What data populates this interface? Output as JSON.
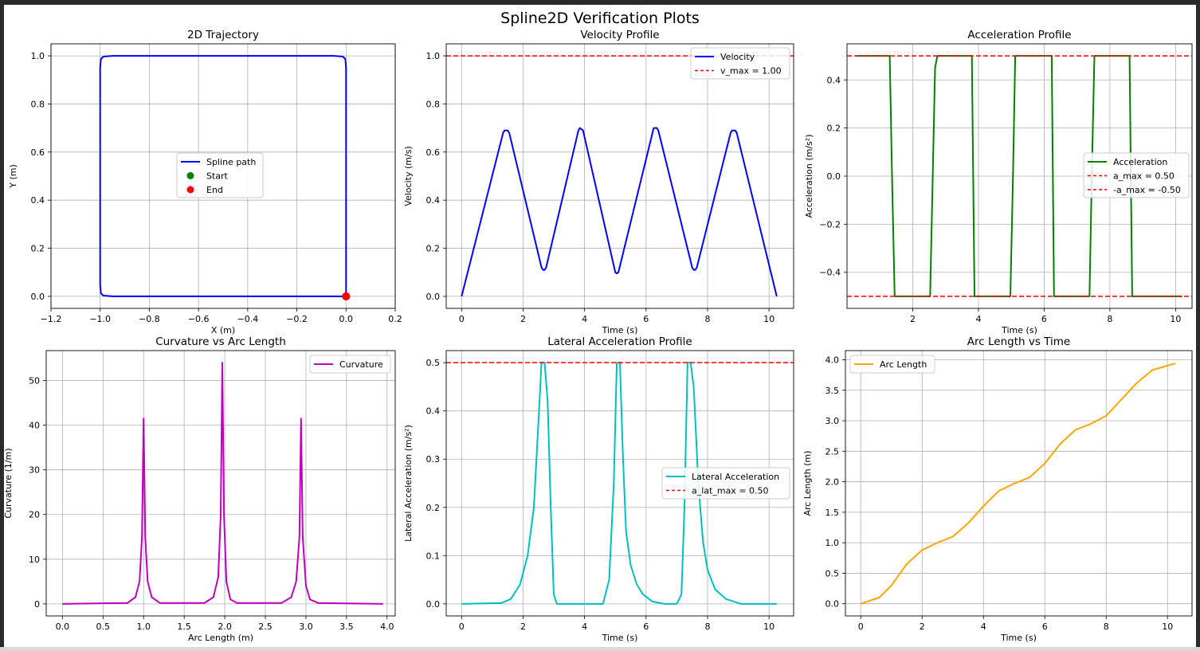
{
  "figure": {
    "title": "Spline2D Verification Plots"
  },
  "chart_data": [
    {
      "id": "trajectory",
      "type": "line",
      "title": "2D Trajectory",
      "xlabel": "X (m)",
      "ylabel": "Y (m)",
      "xlim": [
        -1.2,
        0.2
      ],
      "ylim": [
        -0.05,
        1.05
      ],
      "xticks": [
        -1.2,
        -1.0,
        -0.8,
        -0.6,
        -0.4,
        -0.2,
        0.0,
        0.2
      ],
      "xtick_labels": [
        "−1.2",
        "−1.0",
        "−0.8",
        "−0.6",
        "−0.4",
        "−0.2",
        "0.0",
        "0.2"
      ],
      "yticks": [
        0.0,
        0.2,
        0.4,
        0.6,
        0.8,
        1.0
      ],
      "ytick_labels": [
        "0.0",
        "0.2",
        "0.4",
        "0.6",
        "0.8",
        "1.0"
      ],
      "grid": true,
      "legend": {
        "position": "center",
        "entries": [
          "Spline path",
          "Start",
          "End"
        ]
      },
      "series": [
        {
          "name": "Spline path",
          "kind": "line",
          "color": "#0000ff",
          "x": [
            0.0,
            0.0,
            -0.003,
            -0.013,
            -0.05,
            -0.95,
            -0.987,
            -0.997,
            -1.0,
            -1.0,
            -0.997,
            -0.987,
            -0.95,
            -0.05,
            -0.013,
            -0.003,
            0.0
          ],
          "y": [
            0.0,
            0.95,
            0.987,
            0.997,
            1.0,
            1.0,
            0.997,
            0.987,
            0.95,
            0.05,
            0.013,
            0.003,
            0.0,
            0.0,
            0.0,
            0.0,
            0.0
          ]
        },
        {
          "name": "Start",
          "kind": "point",
          "color": "#008000",
          "x": [
            0.0
          ],
          "y": [
            0.0
          ]
        },
        {
          "name": "End",
          "kind": "point",
          "color": "#ff0000",
          "x": [
            0.0
          ],
          "y": [
            0.0
          ]
        }
      ]
    },
    {
      "id": "velocity",
      "type": "line",
      "title": "Velocity Profile",
      "xlabel": "Time (s)",
      "ylabel": "Velocity (m/s)",
      "xlim": [
        -0.5,
        10.8
      ],
      "ylim": [
        -0.05,
        1.05
      ],
      "xticks": [
        0,
        2,
        4,
        6,
        8,
        10
      ],
      "xtick_labels": [
        "0",
        "2",
        "4",
        "6",
        "8",
        "10"
      ],
      "yticks": [
        0.0,
        0.2,
        0.4,
        0.6,
        0.8,
        1.0
      ],
      "ytick_labels": [
        "0.0",
        "0.2",
        "0.4",
        "0.6",
        "0.8",
        "1.0"
      ],
      "grid": true,
      "legend": {
        "position": "upper right",
        "entries": [
          "Velocity",
          "v_max = 1.00"
        ]
      },
      "series": [
        {
          "name": "Velocity",
          "kind": "line",
          "color": "#0000ff",
          "x": [
            0.0,
            1.35,
            1.4,
            1.5,
            1.55,
            2.6,
            2.65,
            2.7,
            2.75,
            3.8,
            3.85,
            3.95,
            5.0,
            5.05,
            5.1,
            6.25,
            6.35,
            6.4,
            7.5,
            7.55,
            7.6,
            7.65,
            8.75,
            8.8,
            8.9,
            8.95,
            10.25
          ],
          "y": [
            0.0,
            0.68,
            0.69,
            0.69,
            0.68,
            0.12,
            0.11,
            0.11,
            0.12,
            0.69,
            0.7,
            0.69,
            0.1,
            0.095,
            0.1,
            0.7,
            0.7,
            0.69,
            0.12,
            0.11,
            0.11,
            0.12,
            0.68,
            0.69,
            0.69,
            0.68,
            0.0
          ]
        },
        {
          "name": "v_max = 1.00",
          "kind": "hline",
          "color": "#ff0000",
          "dash": true,
          "y": 1.0
        }
      ]
    },
    {
      "id": "acceleration",
      "type": "line",
      "title": "Acceleration Profile",
      "xlabel": "Time (s)",
      "ylabel": "Acceleration (m/s²)",
      "xlim": [
        0.0,
        10.5
      ],
      "ylim": [
        -0.55,
        0.55
      ],
      "xticks": [
        2,
        4,
        6,
        8,
        10
      ],
      "xtick_labels": [
        "2",
        "4",
        "6",
        "8",
        "10"
      ],
      "yticks": [
        -0.4,
        -0.2,
        0.0,
        0.2,
        0.4
      ],
      "ytick_labels": [
        "−0.4",
        "−0.2",
        "0.0",
        "0.2",
        "0.4"
      ],
      "grid": true,
      "legend": {
        "position": "center right",
        "entries": [
          "Acceleration",
          "a_max = 0.50",
          "-a_max = -0.50"
        ]
      },
      "series": [
        {
          "name": "Acceleration",
          "kind": "line",
          "color": "#008000",
          "x": [
            0.3,
            1.3,
            1.37,
            1.45,
            1.53,
            2.53,
            2.61,
            2.68,
            2.75,
            3.8,
            3.88,
            4.97,
            5.05,
            5.12,
            6.23,
            6.3,
            7.38,
            7.45,
            7.53,
            8.6,
            8.68,
            10.2
          ],
          "y": [
            0.5,
            0.5,
            0.0,
            -0.5,
            -0.5,
            -0.5,
            0.0,
            0.45,
            0.5,
            0.5,
            -0.5,
            -0.5,
            0.0,
            0.5,
            0.5,
            -0.5,
            -0.5,
            0.0,
            0.5,
            0.5,
            -0.5,
            -0.5
          ]
        },
        {
          "name": "a_max = 0.50",
          "kind": "hline",
          "color": "#ff0000",
          "dash": true,
          "y": 0.5
        },
        {
          "name": "-a_max = -0.50",
          "kind": "hline",
          "color": "#ff0000",
          "dash": true,
          "y": -0.5
        }
      ]
    },
    {
      "id": "curvature",
      "type": "line",
      "title": "Curvature vs Arc Length",
      "xlabel": "Arc Length (m)",
      "ylabel": "Curvature (1/m)",
      "xlim": [
        -0.2,
        4.1
      ],
      "ylim": [
        -2.7,
        56.7
      ],
      "xticks": [
        0.0,
        0.5,
        1.0,
        1.5,
        2.0,
        2.5,
        3.0,
        3.5,
        4.0
      ],
      "xtick_labels": [
        "0.0",
        "0.5",
        "1.0",
        "1.5",
        "2.0",
        "2.5",
        "3.0",
        "3.5",
        "4.0"
      ],
      "yticks": [
        0,
        10,
        20,
        30,
        40,
        50
      ],
      "ytick_labels": [
        "0",
        "10",
        "20",
        "30",
        "40",
        "50"
      ],
      "grid": true,
      "legend": {
        "position": "upper right",
        "entries": [
          "Curvature"
        ]
      },
      "series": [
        {
          "name": "Curvature",
          "kind": "line",
          "color": "#bf00bf",
          "x": [
            0.0,
            0.8,
            0.9,
            0.95,
            0.98,
            1.0,
            1.02,
            1.05,
            1.1,
            1.2,
            1.75,
            1.86,
            1.92,
            1.95,
            1.97,
            1.99,
            2.02,
            2.07,
            2.15,
            2.7,
            2.82,
            2.88,
            2.92,
            2.94,
            2.96,
            3.0,
            3.05,
            3.15,
            3.95
          ],
          "y": [
            0.0,
            0.2,
            1.5,
            5.0,
            15.0,
            41.5,
            15.0,
            5.0,
            1.5,
            0.2,
            0.2,
            1.5,
            6.0,
            20.0,
            54.0,
            20.0,
            5.0,
            1.0,
            0.2,
            0.2,
            1.5,
            5.0,
            15.0,
            41.5,
            15.0,
            4.0,
            1.0,
            0.2,
            0.0
          ]
        }
      ]
    },
    {
      "id": "lateral",
      "type": "line",
      "title": "Lateral Acceleration Profile",
      "xlabel": "Time (s)",
      "ylabel": "Lateral Acceleration (m/s²)",
      "xlim": [
        -0.5,
        10.8
      ],
      "ylim": [
        -0.025,
        0.525
      ],
      "xticks": [
        0,
        2,
        4,
        6,
        8,
        10
      ],
      "xtick_labels": [
        "0",
        "2",
        "4",
        "6",
        "8",
        "10"
      ],
      "yticks": [
        0.0,
        0.1,
        0.2,
        0.3,
        0.4,
        0.5
      ],
      "ytick_labels": [
        "0.0",
        "0.1",
        "0.2",
        "0.3",
        "0.4",
        "0.5"
      ],
      "grid": true,
      "legend": {
        "position": "center right",
        "entries": [
          "Lateral Acceleration",
          "a_lat_max = 0.50"
        ]
      },
      "series": [
        {
          "name": "Lateral Acceleration",
          "kind": "line",
          "color": "#00bfbf",
          "x": [
            0.0,
            1.3,
            1.6,
            1.9,
            2.15,
            2.35,
            2.5,
            2.6,
            2.7,
            2.8,
            2.9,
            3.0,
            3.1,
            3.2,
            4.6,
            4.8,
            4.95,
            5.05,
            5.15,
            5.25,
            5.35,
            5.5,
            5.7,
            5.9,
            6.2,
            6.6,
            7.0,
            7.15,
            7.25,
            7.35,
            7.45,
            7.55,
            7.7,
            7.85,
            8.0,
            8.25,
            8.6,
            9.1,
            10.25
          ],
          "y": [
            0.0,
            0.002,
            0.01,
            0.04,
            0.1,
            0.2,
            0.38,
            0.5,
            0.5,
            0.42,
            0.2,
            0.02,
            0.0,
            0.0,
            0.0,
            0.05,
            0.25,
            0.5,
            0.5,
            0.3,
            0.15,
            0.08,
            0.04,
            0.02,
            0.005,
            0.0,
            0.0,
            0.02,
            0.2,
            0.5,
            0.5,
            0.45,
            0.25,
            0.13,
            0.07,
            0.03,
            0.01,
            0.0,
            0.0
          ]
        },
        {
          "name": "a_lat_max = 0.50",
          "kind": "hline",
          "color": "#ff0000",
          "dash": true,
          "y": 0.5
        }
      ]
    },
    {
      "id": "arclength",
      "type": "line",
      "title": "Arc Length vs Time",
      "xlabel": "Time (s)",
      "ylabel": "Arc Length (m)",
      "xlim": [
        -0.5,
        10.8
      ],
      "ylim": [
        -0.2,
        4.15
      ],
      "xticks": [
        0,
        2,
        4,
        6,
        8,
        10
      ],
      "xtick_labels": [
        "0",
        "2",
        "4",
        "6",
        "8",
        "10"
      ],
      "yticks": [
        0.0,
        0.5,
        1.0,
        1.5,
        2.0,
        2.5,
        3.0,
        3.5,
        4.0
      ],
      "ytick_labels": [
        "0.0",
        "0.5",
        "1.0",
        "1.5",
        "2.0",
        "2.5",
        "3.0",
        "3.5",
        "4.0"
      ],
      "grid": true,
      "legend": {
        "position": "upper left",
        "entries": [
          "Arc Length"
        ]
      },
      "series": [
        {
          "name": "Arc Length",
          "kind": "line",
          "color": "#ffa500",
          "x": [
            0.0,
            0.6,
            1.0,
            1.5,
            2.0,
            2.5,
            3.0,
            3.5,
            4.0,
            4.5,
            5.0,
            5.5,
            6.0,
            6.5,
            7.0,
            7.5,
            8.0,
            8.5,
            9.0,
            9.5,
            10.25
          ],
          "y": [
            0.0,
            0.1,
            0.3,
            0.65,
            0.88,
            1.0,
            1.1,
            1.32,
            1.6,
            1.85,
            1.97,
            2.07,
            2.3,
            2.62,
            2.85,
            2.95,
            3.08,
            3.35,
            3.62,
            3.83,
            3.94
          ]
        }
      ]
    }
  ]
}
